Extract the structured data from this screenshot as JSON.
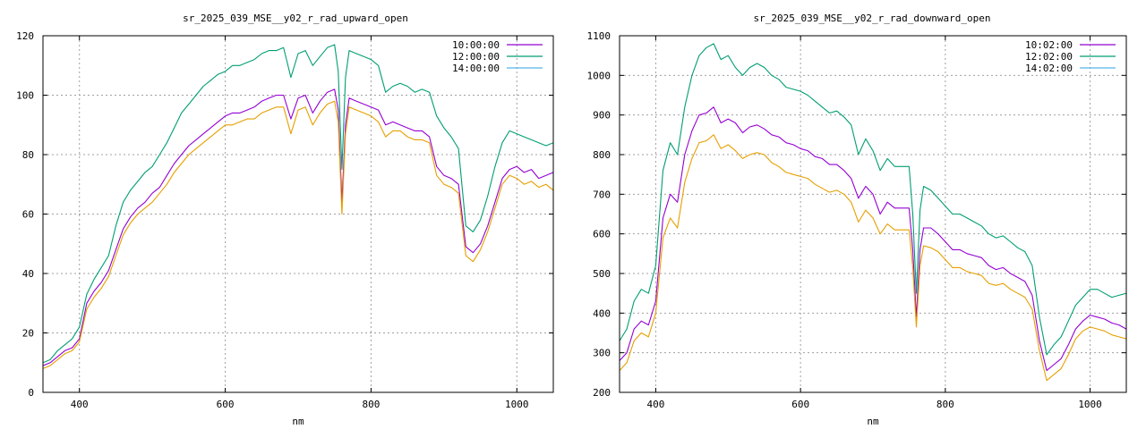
{
  "chart_data": [
    {
      "type": "line",
      "title": "sr_2025_039_MSE__y02_r_rad_upward_open",
      "xlabel": "nm",
      "ylabel": "",
      "xlim": [
        350,
        1050
      ],
      "ylim": [
        0,
        120
      ],
      "xticks": [
        400,
        600,
        800,
        1000
      ],
      "yticks": [
        0,
        20,
        40,
        60,
        80,
        100,
        120
      ],
      "grid": true,
      "legend_position": "top-right",
      "colors": [
        "#9400d3",
        "#009e73",
        "#56b4e9",
        "#e69f00"
      ],
      "x": [
        350,
        360,
        370,
        380,
        390,
        400,
        410,
        420,
        430,
        440,
        450,
        460,
        470,
        480,
        490,
        500,
        510,
        520,
        530,
        540,
        550,
        560,
        570,
        580,
        590,
        600,
        610,
        620,
        630,
        640,
        650,
        660,
        670,
        680,
        690,
        700,
        710,
        720,
        730,
        740,
        750,
        755,
        760,
        765,
        770,
        780,
        790,
        800,
        810,
        820,
        830,
        840,
        850,
        860,
        870,
        880,
        890,
        900,
        910,
        920,
        930,
        940,
        950,
        960,
        970,
        980,
        990,
        1000,
        1010,
        1020,
        1030,
        1040,
        1050
      ],
      "series": [
        {
          "name": "10:00:00",
          "values": [
            9,
            10,
            12,
            14,
            15,
            18,
            30,
            34,
            37,
            41,
            48,
            55,
            59,
            62,
            64,
            67,
            69,
            73,
            77,
            80,
            83,
            85,
            87,
            89,
            91,
            93,
            94,
            94,
            95,
            96,
            98,
            99,
            100,
            100,
            92,
            99,
            100,
            94,
            98,
            101,
            102,
            95,
            64,
            90,
            99,
            98,
            97,
            96,
            95,
            90,
            91,
            90,
            89,
            88,
            88,
            86,
            76,
            73,
            72,
            70,
            49,
            47,
            50,
            56,
            64,
            72,
            75,
            76,
            74,
            75,
            72,
            73,
            74
          ]
        },
        {
          "name": "12:00:00",
          "values": [
            10,
            11,
            14,
            16,
            18,
            22,
            33,
            38,
            42,
            46,
            56,
            64,
            68,
            71,
            74,
            76,
            80,
            84,
            89,
            94,
            97,
            100,
            103,
            105,
            107,
            108,
            110,
            110,
            111,
            112,
            114,
            115,
            115,
            116,
            106,
            114,
            115,
            110,
            113,
            116,
            117,
            108,
            75,
            106,
            115,
            114,
            113,
            112,
            110,
            101,
            103,
            104,
            103,
            101,
            102,
            101,
            93,
            89,
            86,
            82,
            56,
            54,
            58,
            66,
            76,
            84,
            88,
            87,
            86,
            85,
            84,
            83,
            84
          ]
        },
        {
          "name": "14:00:00",
          "values": [
            8,
            9,
            11,
            13,
            14,
            17,
            28,
            32,
            35,
            39,
            46,
            53,
            57,
            60,
            62,
            64,
            67,
            70,
            74,
            77,
            80,
            82,
            84,
            86,
            88,
            90,
            90,
            91,
            92,
            92,
            94,
            95,
            96,
            96,
            87,
            95,
            96,
            90,
            94,
            97,
            98,
            91,
            60,
            87,
            96,
            95,
            94,
            93,
            91,
            86,
            88,
            88,
            86,
            85,
            85,
            84,
            73,
            70,
            69,
            67,
            46,
            44,
            48,
            54,
            62,
            70,
            73,
            72,
            70,
            71,
            69,
            70,
            68
          ]
        }
      ]
    },
    {
      "type": "line",
      "title": "sr_2025_039_MSE__y02_r_rad_downward_open",
      "xlabel": "nm",
      "ylabel": "",
      "xlim": [
        350,
        1050
      ],
      "ylim": [
        200,
        1100
      ],
      "xticks": [
        400,
        600,
        800,
        1000
      ],
      "yticks": [
        200,
        300,
        400,
        500,
        600,
        700,
        800,
        900,
        1000,
        1100
      ],
      "grid": true,
      "legend_position": "top-right",
      "colors": [
        "#9400d3",
        "#009e73",
        "#56b4e9",
        "#e69f00"
      ],
      "x": [
        350,
        360,
        370,
        380,
        390,
        400,
        410,
        420,
        430,
        440,
        450,
        460,
        470,
        480,
        490,
        500,
        510,
        520,
        530,
        540,
        550,
        560,
        570,
        580,
        590,
        600,
        610,
        620,
        630,
        640,
        650,
        660,
        670,
        680,
        690,
        700,
        710,
        720,
        730,
        740,
        750,
        755,
        760,
        765,
        770,
        780,
        790,
        800,
        810,
        820,
        830,
        840,
        850,
        860,
        870,
        880,
        890,
        900,
        910,
        920,
        930,
        940,
        950,
        960,
        970,
        980,
        990,
        1000,
        1010,
        1020,
        1030,
        1040,
        1050
      ],
      "series": [
        {
          "name": "10:02:00",
          "values": [
            280,
            300,
            360,
            380,
            370,
            430,
            640,
            700,
            680,
            800,
            860,
            900,
            905,
            920,
            880,
            890,
            880,
            855,
            870,
            875,
            865,
            850,
            845,
            830,
            825,
            815,
            810,
            795,
            790,
            775,
            775,
            760,
            740,
            690,
            720,
            700,
            650,
            680,
            665,
            665,
            665,
            560,
            390,
            560,
            615,
            615,
            600,
            580,
            560,
            560,
            550,
            545,
            540,
            520,
            510,
            515,
            500,
            490,
            480,
            445,
            330,
            255,
            270,
            285,
            320,
            360,
            380,
            395,
            390,
            385,
            375,
            370,
            360
          ]
        },
        {
          "name": "12:02:00",
          "values": [
            330,
            360,
            430,
            460,
            450,
            520,
            760,
            830,
            800,
            920,
            1000,
            1050,
            1070,
            1080,
            1040,
            1050,
            1020,
            1000,
            1020,
            1030,
            1020,
            1000,
            990,
            970,
            965,
            960,
            950,
            935,
            920,
            905,
            910,
            895,
            875,
            800,
            840,
            810,
            760,
            790,
            770,
            770,
            770,
            650,
            450,
            660,
            720,
            710,
            690,
            670,
            650,
            650,
            640,
            630,
            620,
            600,
            590,
            595,
            580,
            565,
            555,
            520,
            390,
            295,
            320,
            340,
            380,
            420,
            440,
            460,
            460,
            450,
            440,
            445,
            450
          ]
        },
        {
          "name": "14:02:00",
          "values": [
            255,
            275,
            330,
            350,
            340,
            400,
            590,
            640,
            615,
            730,
            790,
            830,
            835,
            850,
            815,
            825,
            810,
            790,
            800,
            805,
            800,
            780,
            770,
            755,
            750,
            745,
            740,
            725,
            715,
            705,
            710,
            700,
            680,
            630,
            660,
            640,
            600,
            625,
            610,
            610,
            610,
            515,
            365,
            520,
            570,
            565,
            555,
            535,
            515,
            515,
            505,
            500,
            495,
            475,
            470,
            475,
            460,
            450,
            440,
            410,
            305,
            230,
            245,
            260,
            295,
            335,
            355,
            365,
            360,
            355,
            345,
            340,
            335
          ]
        }
      ]
    }
  ]
}
